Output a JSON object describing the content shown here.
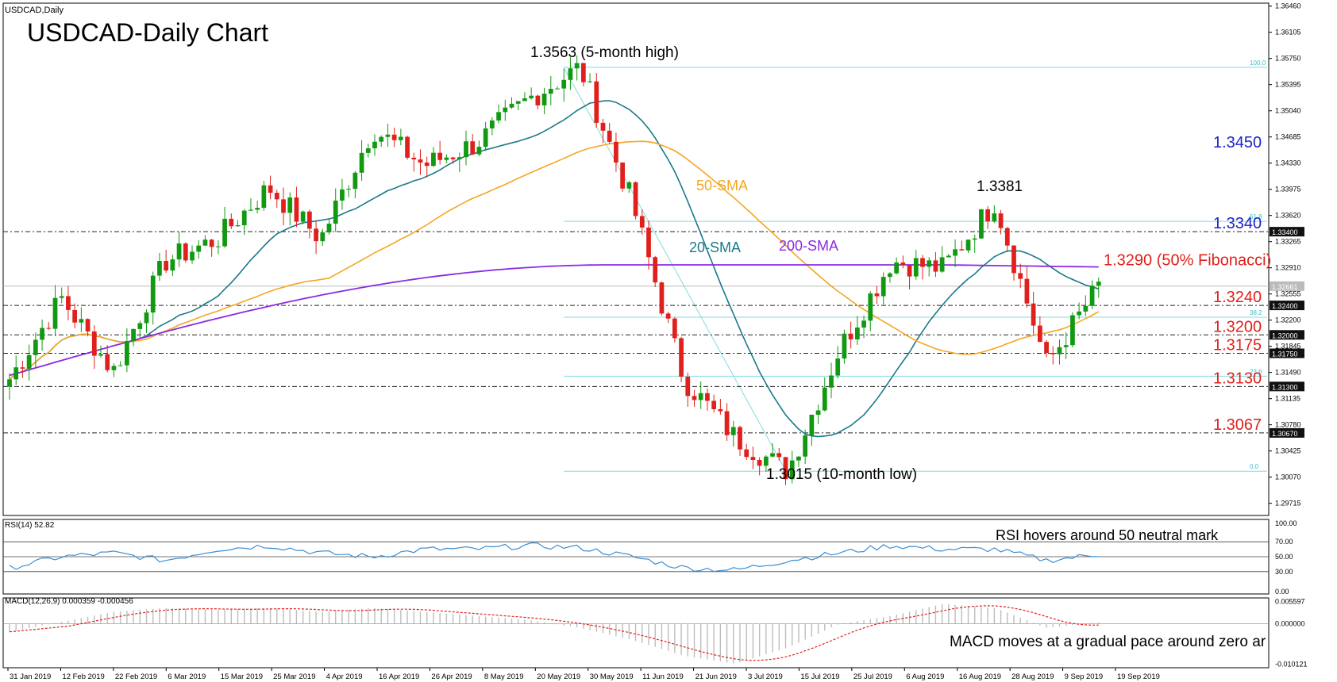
{
  "header": {
    "symbol_label": "USDCAD,Daily",
    "title": "USDCAD-Daily Chart"
  },
  "annotations": {
    "high": "1.3563 (5-month high)",
    "low": "1.3015 (10-month  low)",
    "peak": "1.3381",
    "sma50": "50-SMA",
    "sma20": "20-SMA",
    "sma200": "200-SMA",
    "rsi_note": "RSI hovers around 50 neutral mark",
    "macd_note": "MACD moves at a gradual pace around zero ar"
  },
  "levels": [
    {
      "value": 1.345,
      "label": "1.3450",
      "color": "#1f23c8",
      "kind": "fib",
      "fib": "78.6"
    },
    {
      "value": 1.334,
      "label": "1.3340",
      "color": "#1f23c8",
      "kind": "dash",
      "box": "1.33400"
    },
    {
      "value": 1.329,
      "label": "1.3290 (50% Fibonacci)",
      "color": "#e0201c",
      "kind": "fib",
      "fib": "50.0"
    },
    {
      "value": 1.324,
      "label": "1.3240",
      "color": "#e0201c",
      "kind": "dash",
      "box": "1.32400"
    },
    {
      "value": 1.32,
      "label": "1.3200",
      "color": "#e0201c",
      "kind": "dash",
      "box": "1.32000"
    },
    {
      "value": 1.3175,
      "label": "1.3175",
      "color": "#e0201c",
      "kind": "dash",
      "box": "1.31750"
    },
    {
      "value": 1.313,
      "label": "1.3130",
      "color": "#e0201c",
      "kind": "dash",
      "box": "1.31300"
    },
    {
      "value": 1.3067,
      "label": "1.3067",
      "color": "#e0201c",
      "kind": "dash",
      "box": "1.30670"
    }
  ],
  "fib_lines": [
    {
      "value": 1.3563,
      "label": "100.0"
    },
    {
      "value": 1.3354,
      "label": "61.8"
    },
    {
      "value": 1.3224,
      "label": "38.2"
    },
    {
      "value": 1.3144,
      "label": "23.6"
    },
    {
      "value": 1.3015,
      "label": "0.0"
    }
  ],
  "current_price": "1.32661",
  "colors": {
    "bull": "#119911",
    "bear": "#e0201c",
    "sma20": "#1a7a8a",
    "sma50": "#f5a623",
    "sma200": "#8a2be2",
    "fib": "#7fdbe0",
    "rsi": "#3a8fd6",
    "macd": "#e0201c",
    "text_red": "#e0201c",
    "text_blue": "#1f23c8"
  },
  "chart_data": [
    {
      "type": "candlestick",
      "title": "USDCAD-Daily Chart",
      "ylim": [
        1.2955,
        1.365
      ],
      "y_ticks": [
        "1.36460",
        "1.36105",
        "1.35750",
        "1.35395",
        "1.35040",
        "1.34685",
        "1.34330",
        "1.33975",
        "1.33620",
        "1.33265",
        "1.32910",
        "1.32555",
        "1.32200",
        "1.31845",
        "1.31490",
        "1.31135",
        "1.30780",
        "1.30425",
        "1.30070",
        "1.29715"
      ],
      "x_ticks": [
        "31 Jan 2019",
        "12 Feb 2019",
        "22 Feb 2019",
        "6 Mar 2019",
        "15 Mar 2019",
        "25 Mar 2019",
        "4 Apr 2019",
        "16 Apr 2019",
        "26 Apr 2019",
        "8 May 2019",
        "20 May 2019",
        "30 May 2019",
        "11 Jun 2019",
        "21 Jun 2019",
        "3 Jul 2019",
        "15 Jul 2019",
        "25 Jul 2019",
        "6 Aug 2019",
        "16 Aug 2019",
        "28 Aug 2019",
        "9 Sep 2019",
        "19 Sep 2019"
      ],
      "key_closes": [
        1.314,
        1.325,
        1.315,
        1.33,
        1.333,
        1.34,
        1.333,
        1.348,
        1.343,
        1.346,
        1.352,
        1.3563,
        1.338,
        1.314,
        1.306,
        1.3015,
        1.318,
        1.33,
        1.329,
        1.3381,
        1.316,
        1.3266
      ],
      "series": [
        {
          "name": "20-SMA"
        },
        {
          "name": "50-SMA"
        },
        {
          "name": "200-SMA"
        }
      ]
    },
    {
      "type": "line",
      "name": "RSI(14) 52.82",
      "ylim": [
        0,
        100
      ],
      "y_ticks": [
        "100.00",
        "70.00",
        "50.00",
        "30.00",
        "0.00"
      ],
      "levels": [
        70,
        50,
        30
      ],
      "key_values": [
        35,
        50,
        55,
        45,
        60,
        65,
        55,
        50,
        60,
        60,
        65,
        62,
        50,
        35,
        32,
        45,
        55,
        65,
        60,
        60,
        45,
        52.82
      ]
    },
    {
      "type": "bar",
      "name": "MACD(12,26,9) 0.000359 -0.000456",
      "ylim": [
        -0.011,
        0.0065
      ],
      "y_ticks": [
        "0.005597",
        "0.000000",
        "-0.010121"
      ],
      "key_values": [
        -0.002,
        0.0005,
        0.003,
        0.004,
        0.0035,
        0.004,
        0.003,
        0.004,
        0.003,
        0.002,
        0.001,
        -0.001,
        -0.004,
        -0.008,
        -0.01,
        -0.006,
        0.0,
        0.002,
        0.005,
        0.004,
        -0.001,
        0.0004
      ]
    }
  ]
}
